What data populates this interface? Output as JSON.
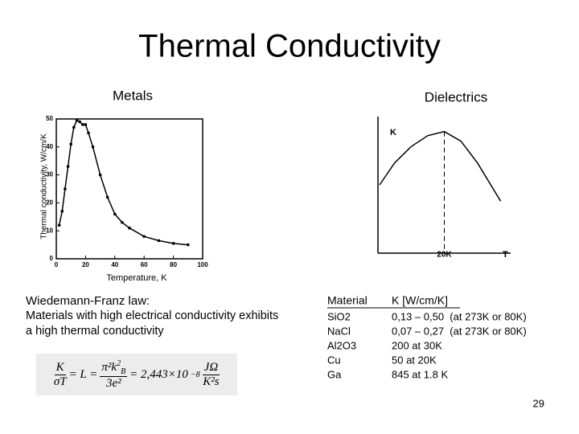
{
  "slide": {
    "title": "Thermal Conductivity",
    "page_number": "29"
  },
  "chart_data": [
    {
      "type": "line",
      "title": "Metals",
      "y_label": "Thermal conductivity, W/cm/K",
      "x_label": "Temperature, K",
      "x": [
        2,
        4,
        6,
        8,
        10,
        12,
        14,
        16,
        18,
        20,
        22,
        25,
        30,
        35,
        40,
        45,
        50,
        60,
        70,
        80,
        90
      ],
      "values": [
        12,
        17,
        25,
        33,
        41,
        47,
        49.5,
        49,
        48,
        48,
        45,
        40,
        30,
        22,
        16,
        13,
        11,
        8,
        6.5,
        5.5,
        5
      ],
      "color": "#000000",
      "xlim": [
        0,
        100
      ],
      "xticks": [
        0,
        20,
        40,
        60,
        80,
        100
      ],
      "ylim": [
        0,
        50
      ],
      "yticks": [
        0,
        10,
        20,
        30,
        40,
        50
      ]
    },
    {
      "type": "line",
      "title": "Dielectrics",
      "y_label": "K",
      "x_label": "T",
      "x": [
        0.5,
        5,
        10,
        15,
        20,
        25,
        30,
        37
      ],
      "values": [
        0.5,
        0.66,
        0.78,
        0.86,
        0.89,
        0.82,
        0.66,
        0.38
      ],
      "color": "#000000",
      "xlim": [
        0,
        40
      ],
      "xticks": [
        {
          "value": 20,
          "label": "20K"
        }
      ],
      "ylim": [
        0,
        1
      ]
    }
  ],
  "law": {
    "heading": "Wiedemann-Franz law:",
    "text": "Materials with high electrical conductivity exhibits a high thermal conductivity",
    "formula": {
      "num1": "K",
      "den1": "σT",
      "mid": "= L =",
      "num2": "π²k",
      "num2_sub": "B",
      "num2_sup": "2",
      "den2": "3e²",
      "value": "= 2,443×10",
      "exponent": "−8",
      "unit_num": "JΩ",
      "unit_den": "K²s"
    }
  },
  "table": {
    "header": [
      "Material",
      "K [W/cm/K]"
    ],
    "rows": [
      [
        "SiO2",
        "0,13 – 0,50  (at 273K or 80K)"
      ],
      [
        "NaCl",
        "0,07 – 0,27  (at 273K or 80K)"
      ],
      [
        "Al2O3",
        "200 at 30K"
      ],
      [
        "Cu",
        "50 at 20K"
      ],
      [
        "Ga",
        "845 at 1.8 K"
      ]
    ]
  }
}
